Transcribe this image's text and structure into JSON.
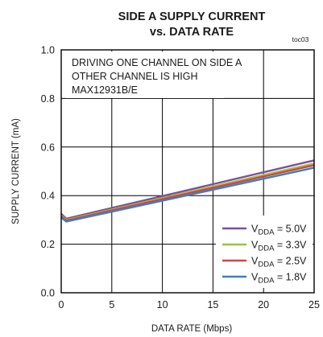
{
  "chart_data": {
    "type": "line",
    "title": "SIDE A SUPPLY CURRENT",
    "subtitle": "vs. DATA RATE",
    "tag": "toc03",
    "xlabel": "DATA RATE (Mbps)",
    "ylabel": "SUPPLY CURRENT (mA)",
    "xlim": [
      0,
      25
    ],
    "ylim": [
      0.0,
      1.0
    ],
    "xticks": [
      "0",
      "5",
      "10",
      "15",
      "20",
      "25"
    ],
    "yticks": [
      "0.0",
      "0.2",
      "0.4",
      "0.6",
      "0.8",
      "1.0"
    ],
    "grid": true,
    "annotations": [
      "DRIVING ONE CHANNEL ON SIDE A",
      "OTHER CHANNEL IS HIGH",
      "MAX12931B/E"
    ],
    "legend_position": "bottom-right",
    "series": [
      {
        "name": "V",
        "sub": "DDA",
        "suffix": " = 5.0V",
        "color": "#7b4fa0",
        "x": [
          0,
          0.5,
          25
        ],
        "y": [
          0.325,
          0.305,
          0.545
        ]
      },
      {
        "name": "V",
        "sub": "DDA",
        "suffix": " = 3.3V",
        "color": "#9cc33a",
        "x": [
          0,
          0.5,
          25
        ],
        "y": [
          0.318,
          0.3,
          0.532
        ]
      },
      {
        "name": "V",
        "sub": "DDA",
        "suffix": " = 2.5V",
        "color": "#d94040",
        "x": [
          0,
          0.5,
          25
        ],
        "y": [
          0.314,
          0.297,
          0.525
        ]
      },
      {
        "name": "V",
        "sub": "DDA",
        "suffix": " = 1.8V",
        "color": "#3d7fbf",
        "x": [
          0,
          0.5,
          25
        ],
        "y": [
          0.31,
          0.293,
          0.515
        ]
      }
    ]
  }
}
